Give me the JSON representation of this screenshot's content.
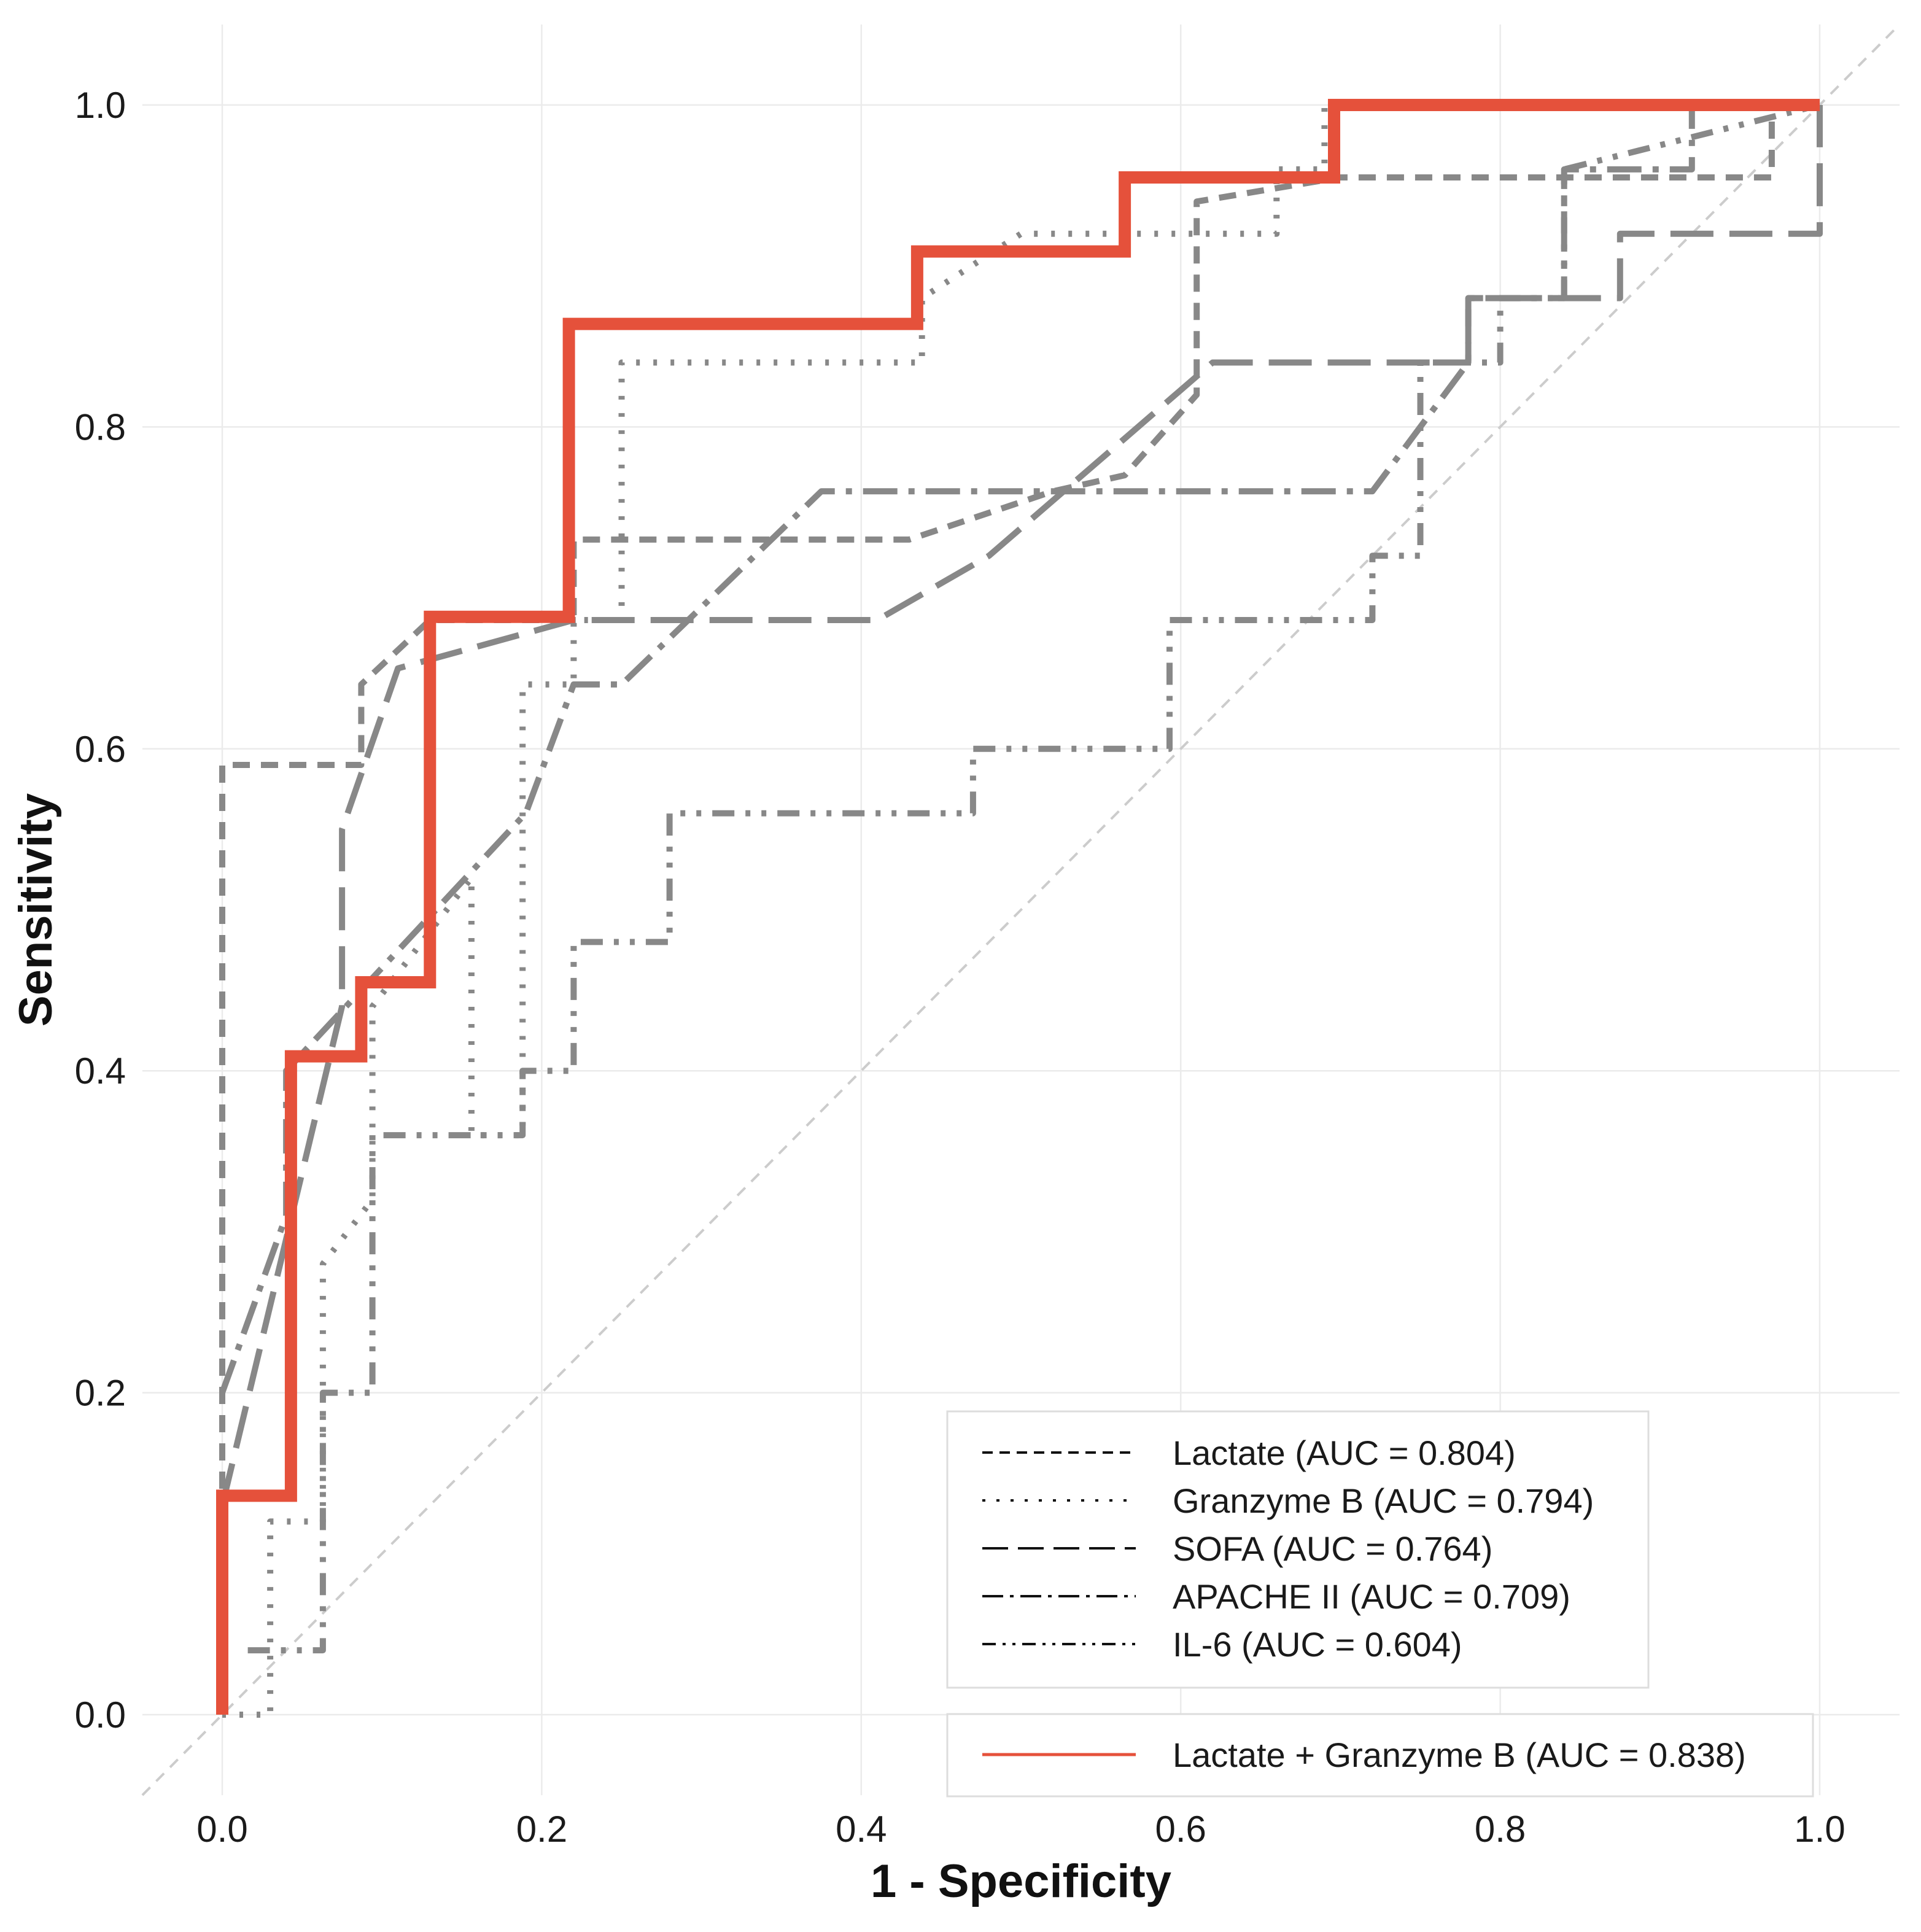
{
  "chart_data": {
    "type": "line",
    "title": "",
    "xlabel": "1 - Specificity",
    "ylabel": "Sensitivity",
    "xlim": [
      -0.05,
      1.05
    ],
    "ylim": [
      -0.05,
      1.05
    ],
    "x_ticks": [
      0.0,
      0.2,
      0.4,
      0.6,
      0.8,
      1.0
    ],
    "y_ticks": [
      0.0,
      0.2,
      0.4,
      0.6,
      0.8,
      1.0
    ],
    "x_tick_labels": [
      "0.0",
      "0.2",
      "0.4",
      "0.6",
      "0.8",
      "1.0"
    ],
    "y_tick_labels": [
      "0.0",
      "0.2",
      "0.4",
      "0.6",
      "0.8",
      "1.0"
    ],
    "grid": true,
    "diagonal_reference": [
      [
        -0.05,
        -0.05
      ],
      [
        1.05,
        1.05
      ]
    ],
    "legend_position": "bottom-right",
    "colors": {
      "reference": "#888888",
      "combined": "#e5513b",
      "diagonal": "#cccccc",
      "grid": "#ebebeb"
    },
    "series": [
      {
        "name": "Lactate (AUC = 0.804)",
        "group": "single",
        "style": "dashed",
        "x": [
          0,
          0,
          0,
          0.087,
          0.087,
          0.13,
          0.22,
          0.22,
          0.43,
          0.52,
          0.565,
          0.61,
          0.61,
          0.7,
          0.74,
          0.97,
          0.97,
          1
        ],
        "y": [
          0,
          0.2,
          0.59,
          0.59,
          0.64,
          0.68,
          0.68,
          0.73,
          0.73,
          0.76,
          0.77,
          0.82,
          0.94,
          0.955,
          0.955,
          0.955,
          1,
          1
        ]
      },
      {
        "name": "Granzyme B (AUC = 0.794)",
        "group": "single",
        "style": "dotted",
        "x": [
          0,
          0.03,
          0.03,
          0.063,
          0.063,
          0.094,
          0.094,
          0.156,
          0.156,
          0.188,
          0.188,
          0.22,
          0.22,
          0.25,
          0.25,
          0.438,
          0.438,
          0.5,
          0.5,
          0.66,
          0.66,
          0.69,
          0.69,
          0.72,
          0.72,
          1
        ],
        "y": [
          0,
          0,
          0.12,
          0.12,
          0.28,
          0.32,
          0.44,
          0.52,
          0.36,
          0.36,
          0.64,
          0.64,
          0.68,
          0.68,
          0.84,
          0.84,
          0.88,
          0.92,
          0.92,
          0.92,
          0.96,
          0.96,
          1,
          1,
          1,
          1
        ]
      },
      {
        "name": "SOFA (AUC = 0.764)",
        "group": "single",
        "style": "longdash",
        "x": [
          0,
          0.075,
          0.075,
          0.11,
          0.22,
          0.41,
          0.48,
          0.62,
          0.78,
          0.78,
          0.875,
          0.875,
          1,
          1
        ],
        "y": [
          0.13,
          0.44,
          0.55,
          0.65,
          0.68,
          0.68,
          0.72,
          0.84,
          0.84,
          0.88,
          0.88,
          0.92,
          0.92,
          1
        ]
      },
      {
        "name": "APACHE II (AUC = 0.709)",
        "group": "single",
        "style": "dashdot",
        "x": [
          0,
          0.04,
          0.04,
          0.19,
          0.22,
          0.25,
          0.375,
          0.72,
          0.78,
          0.78,
          0.84,
          0.84,
          0.92,
          0.92,
          1
        ],
        "y": [
          0.2,
          0.31,
          0.4,
          0.56,
          0.64,
          0.64,
          0.76,
          0.76,
          0.84,
          0.88,
          0.88,
          0.96,
          0.96,
          1,
          1
        ]
      },
      {
        "name": "IL-6 (AUC = 0.604)",
        "group": "single",
        "style": "twodash",
        "x": [
          0.016,
          0.063,
          0.063,
          0.094,
          0.094,
          0.188,
          0.188,
          0.22,
          0.22,
          0.28,
          0.28,
          0.47,
          0.47,
          0.593,
          0.593,
          0.72,
          0.72,
          0.75,
          0.75,
          0.8,
          0.8,
          0.84,
          0.84,
          1
        ],
        "y": [
          0.04,
          0.04,
          0.2,
          0.2,
          0.36,
          0.36,
          0.4,
          0.4,
          0.48,
          0.48,
          0.56,
          0.56,
          0.6,
          0.6,
          0.68,
          0.68,
          0.72,
          0.72,
          0.84,
          0.84,
          0.88,
          0.88,
          0.96,
          1
        ]
      },
      {
        "name": "Lactate + Granzyme B (AUC = 0.838)",
        "group": "combined",
        "style": "solid",
        "x": [
          0,
          0,
          0.043,
          0.043,
          0.087,
          0.087,
          0.13,
          0.13,
          0.217,
          0.217,
          0.435,
          0.435,
          0.565,
          0.565,
          0.696,
          0.696,
          1
        ],
        "y": [
          0,
          0.136,
          0.136,
          0.409,
          0.409,
          0.455,
          0.455,
          0.682,
          0.682,
          0.864,
          0.864,
          0.909,
          0.909,
          0.955,
          0.955,
          1,
          1
        ]
      }
    ]
  }
}
